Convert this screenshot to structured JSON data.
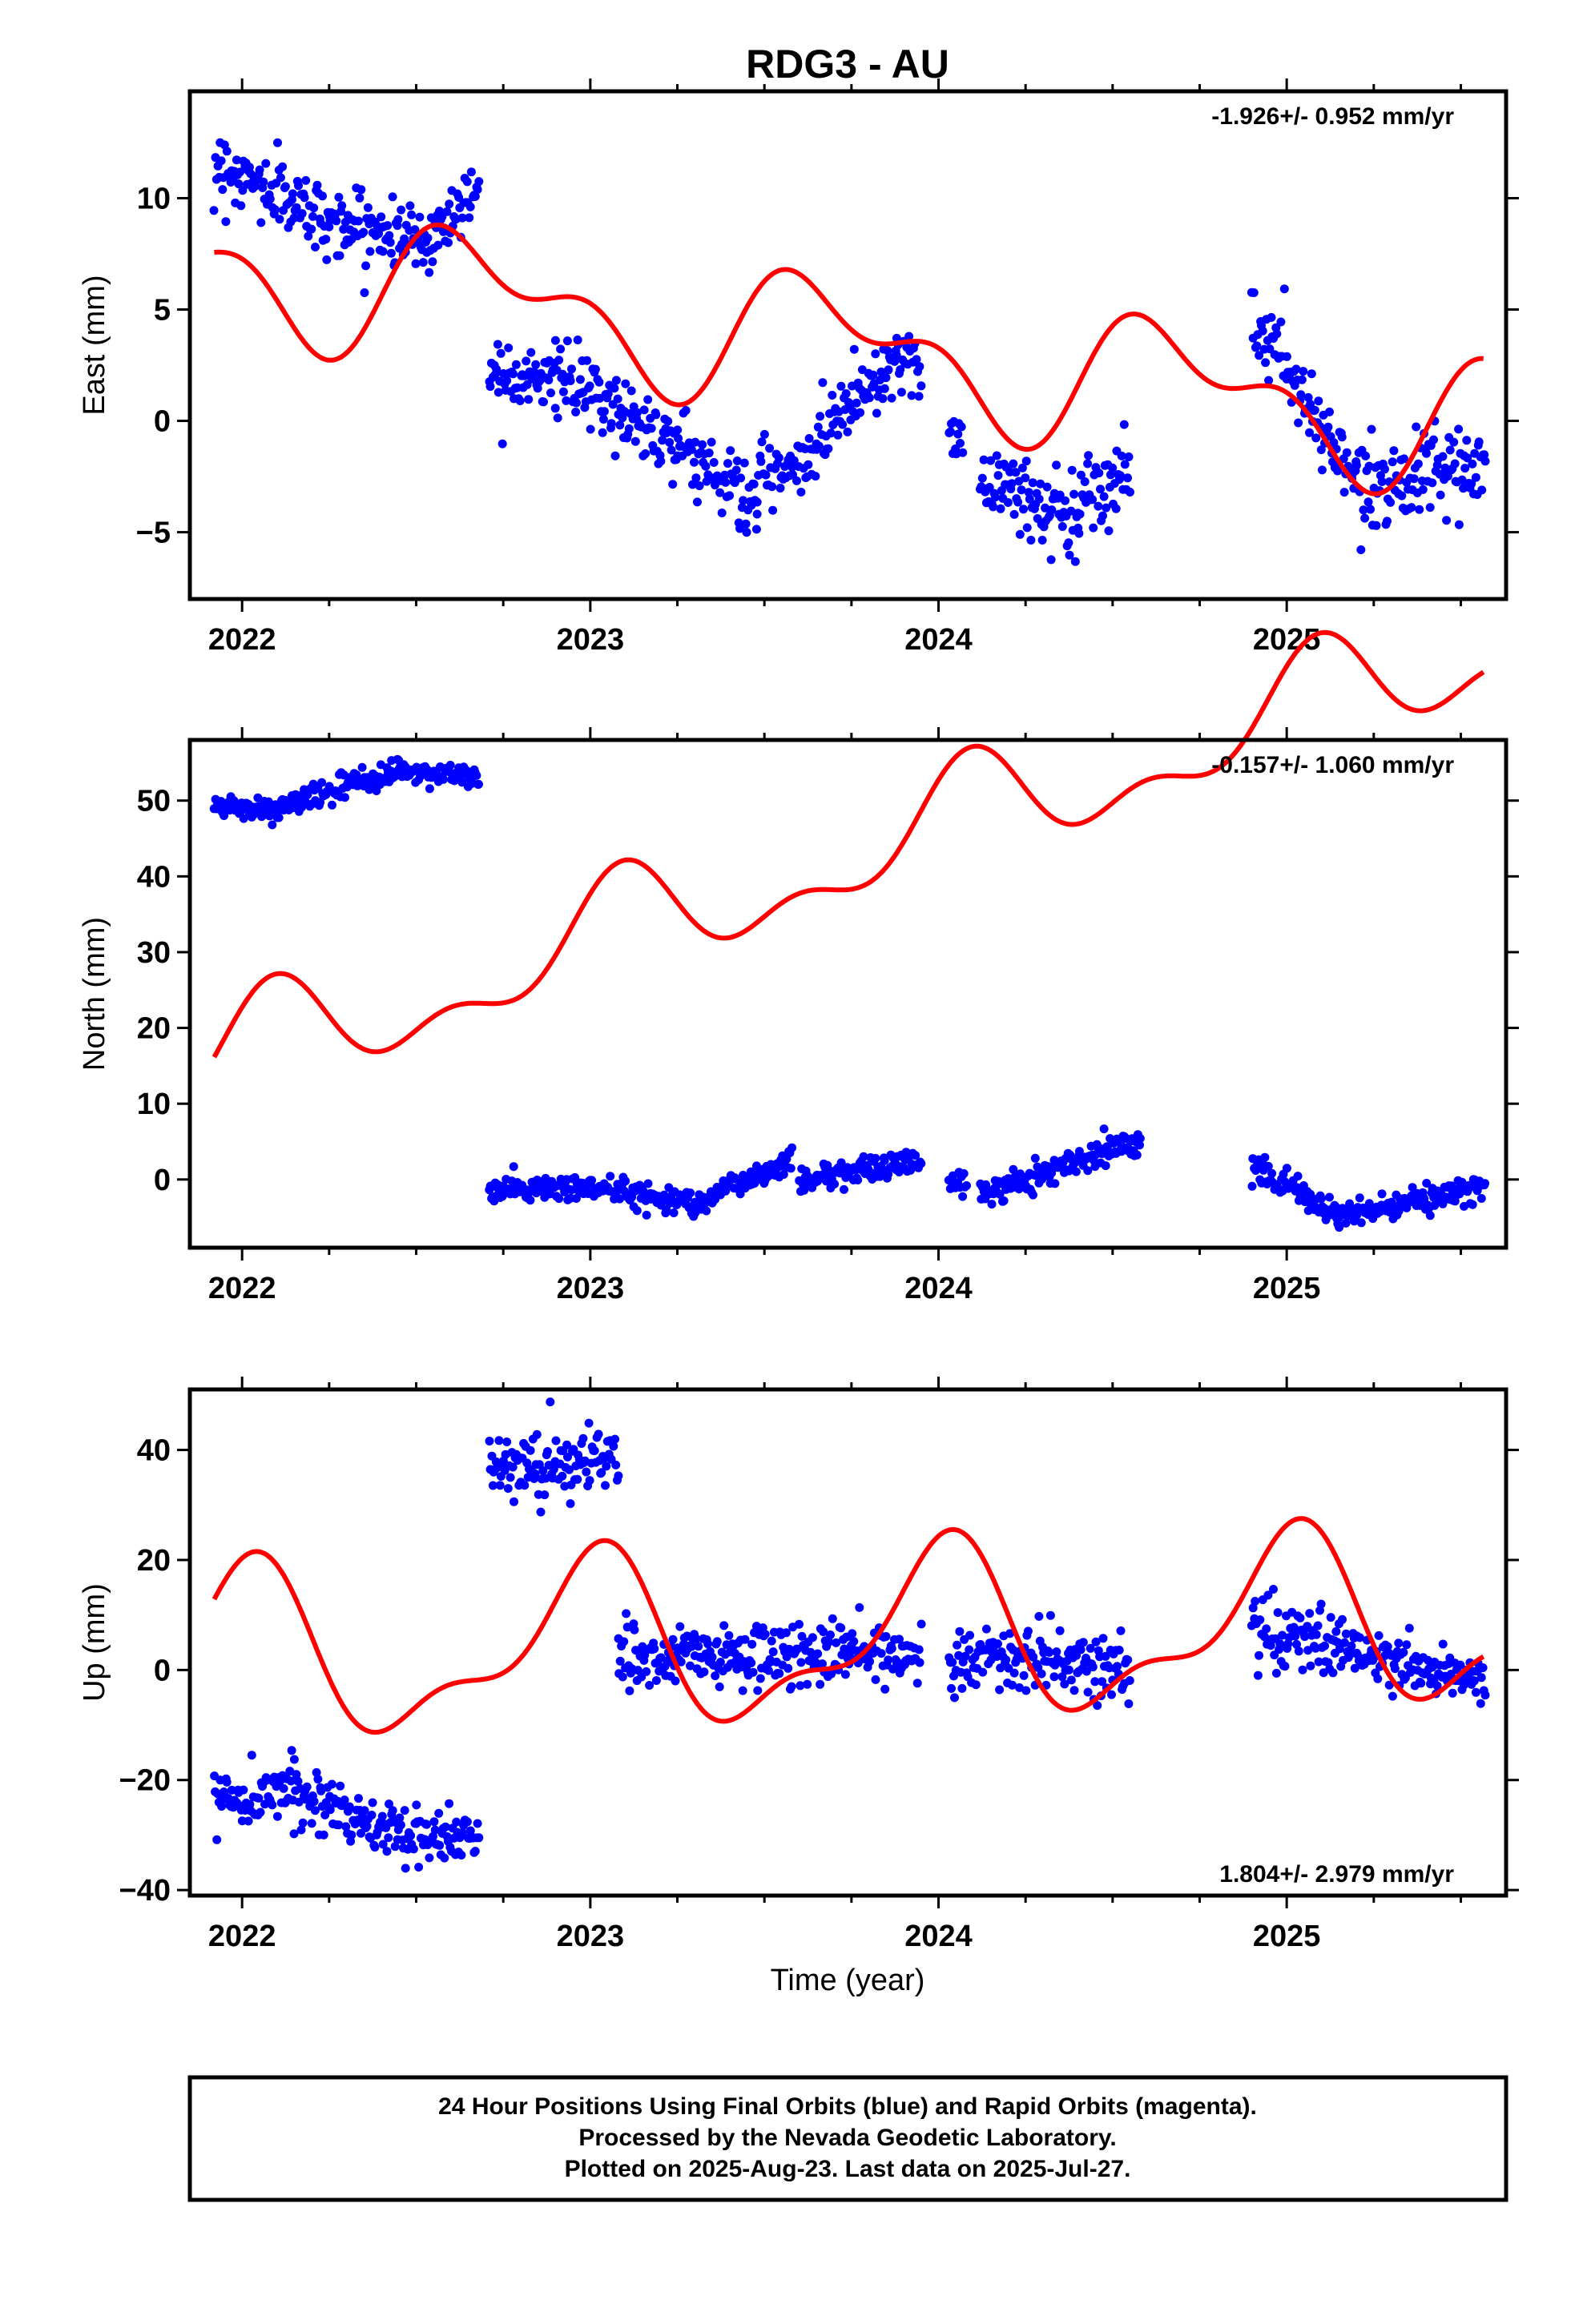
{
  "title": "RDG3 - AU",
  "xlabel": "Time (year)",
  "colors": {
    "final_orbits": "#0000ff",
    "model_fit": "#ff0000",
    "frame": "#000000"
  },
  "footer": {
    "line1": "24 Hour Positions Using Final Orbits (blue) and Rapid Orbits (magenta).",
    "line2": "Processed by the Nevada Geodetic Laboratory.",
    "line3": "Plotted on 2025-Aug-23. Last data on 2025-Jul-27."
  },
  "chart_data": [
    {
      "type": "scatter",
      "name": "east",
      "ylabel": "East (mm)",
      "rate": "-1.926+/- 0.952 mm/yr",
      "rate_position": "top-right",
      "xlim": [
        2021.85,
        2025.63
      ],
      "ylim": [
        -8,
        14.8
      ],
      "xticks": [
        2022,
        2023,
        2024,
        2025
      ],
      "yticks": [
        -5,
        0,
        5,
        10
      ],
      "ytick_labels": [
        "−5",
        "0",
        "5",
        "10"
      ],
      "data_segments": [
        {
          "x": [
            2021.92,
            2022.25
          ],
          "base": [
            11.6,
            9.0
          ],
          "amp": 1.3
        },
        {
          "x": [
            2022.25,
            2022.55
          ],
          "base": [
            9.0,
            8.0
          ],
          "amp": 1.2
        },
        {
          "x": [
            2022.55,
            2022.68
          ],
          "base": [
            8.5,
            10.5
          ],
          "amp": 1.2
        },
        {
          "x": [
            2022.71,
            2022.9
          ],
          "base": [
            2.3,
            2.0
          ],
          "amp": 1.3
        },
        {
          "x": [
            2022.9,
            2023.25
          ],
          "base": [
            2.0,
            -1.0
          ],
          "amp": 1.3
        },
        {
          "x": [
            2023.25,
            2023.48
          ],
          "base": [
            -1.0,
            -3.8
          ],
          "amp": 1.4
        },
        {
          "x": [
            2023.48,
            2023.65
          ],
          "base": [
            -2.5,
            -2.0
          ],
          "amp": 1.3
        },
        {
          "x": [
            2023.65,
            2023.88
          ],
          "base": [
            -0.5,
            2.8
          ],
          "amp": 1.3
        },
        {
          "x": [
            2023.88,
            2023.95
          ],
          "base": [
            3.0,
            2.0
          ],
          "amp": 1.0
        },
        {
          "x": [
            2024.03,
            2024.07
          ],
          "base": [
            -0.5,
            -0.5
          ],
          "amp": 1.0
        },
        {
          "x": [
            2024.12,
            2024.4
          ],
          "base": [
            -2.5,
            -4.5
          ],
          "amp": 1.8
        },
        {
          "x": [
            2024.4,
            2024.55
          ],
          "base": [
            -3.5,
            -2.0
          ],
          "amp": 1.6
        },
        {
          "x": [
            2024.9,
            2025.0
          ],
          "base": [
            4.0,
            3.0
          ],
          "amp": 1.5
        },
        {
          "x": [
            2025.0,
            2025.2
          ],
          "base": [
            2.0,
            -2.5
          ],
          "amp": 1.4
        },
        {
          "x": [
            2025.2,
            2025.57
          ],
          "base": [
            -2.8,
            -2.2
          ],
          "amp": 1.3
        }
      ],
      "model": {
        "trend": [
          7.0,
          -2.0
        ],
        "annual": [
          2.4,
          -2.0
        ],
        "semiannual": [
          1.5,
          0.3
        ]
      }
    },
    {
      "type": "scatter",
      "name": "north",
      "ylabel": "North (mm)",
      "rate": "-0.157+/- 1.060 mm/yr",
      "rate_position": "top-right",
      "xlim": [
        2021.85,
        2025.63
      ],
      "ylim": [
        -9,
        58
      ],
      "xticks": [
        2022,
        2023,
        2024,
        2025
      ],
      "yticks": [
        0,
        10,
        20,
        30,
        40,
        50
      ],
      "ytick_labels": [
        "0",
        "10",
        "20",
        "30",
        "40",
        "50"
      ],
      "data_segments": [
        {
          "x": [
            2021.92,
            2022.1
          ],
          "base": [
            49.5,
            48.5
          ],
          "amp": 1.4
        },
        {
          "x": [
            2022.1,
            2022.45
          ],
          "base": [
            49.0,
            54.0
          ],
          "amp": 1.4
        },
        {
          "x": [
            2022.45,
            2022.68
          ],
          "base": [
            54.0,
            53.0
          ],
          "amp": 1.3
        },
        {
          "x": [
            2022.71,
            2023.0
          ],
          "base": [
            -1.5,
            -1.0
          ],
          "amp": 1.5
        },
        {
          "x": [
            2023.0,
            2023.3
          ],
          "base": [
            -1.0,
            -3.0
          ],
          "amp": 1.4
        },
        {
          "x": [
            2023.3,
            2023.58
          ],
          "base": [
            -3.0,
            2.5
          ],
          "amp": 1.5
        },
        {
          "x": [
            2023.6,
            2023.95
          ],
          "base": [
            0.0,
            2.5
          ],
          "amp": 1.4
        },
        {
          "x": [
            2024.03,
            2024.08
          ],
          "base": [
            0.0,
            -1.0
          ],
          "amp": 1.2
        },
        {
          "x": [
            2024.12,
            2024.58
          ],
          "base": [
            -2.0,
            5.5
          ],
          "amp": 1.5
        },
        {
          "x": [
            2024.9,
            2025.15
          ],
          "base": [
            2.0,
            -5.0
          ],
          "amp": 1.5
        },
        {
          "x": [
            2025.15,
            2025.57
          ],
          "base": [
            -5.0,
            -1.0
          ],
          "amp": 1.4
        }
      ],
      "model": {
        "trend": [
          15.0,
          15.0
        ],
        "annual": [
          6.0,
          0.5
        ],
        "semiannual": [
          3.5,
          1.2
        ]
      }
    },
    {
      "type": "scatter",
      "name": "up",
      "ylabel": "Up (mm)",
      "rate": "1.804+/- 2.979 mm/yr",
      "rate_position": "bottom-right",
      "xlim": [
        2021.85,
        2025.63
      ],
      "ylim": [
        -41,
        51
      ],
      "xticks": [
        2022,
        2023,
        2024,
        2025
      ],
      "yticks": [
        -40,
        -20,
        0,
        20,
        40
      ],
      "ytick_labels": [
        "−40",
        "−20",
        "0",
        "20",
        "40"
      ],
      "data_segments": [
        {
          "x": [
            2021.92,
            2022.15
          ],
          "base": [
            -24.0,
            -21.0
          ],
          "amp": 4.5
        },
        {
          "x": [
            2022.15,
            2022.5
          ],
          "base": [
            -22.0,
            -31.0
          ],
          "amp": 4.5
        },
        {
          "x": [
            2022.5,
            2022.68
          ],
          "base": [
            -31.0,
            -29.0
          ],
          "amp": 4.5
        },
        {
          "x": [
            2022.71,
            2023.08
          ],
          "base": [
            37.0,
            38.0
          ],
          "amp": 5.0
        },
        {
          "x": [
            2023.08,
            2023.95
          ],
          "base": [
            2.0,
            3.0
          ],
          "amp": 5.0
        },
        {
          "x": [
            2024.03,
            2024.55
          ],
          "base": [
            3.0,
            0.0
          ],
          "amp": 5.0
        },
        {
          "x": [
            2024.9,
            2025.2
          ],
          "base": [
            8.0,
            3.0
          ],
          "amp": 5.0
        },
        {
          "x": [
            2025.2,
            2025.57
          ],
          "base": [
            3.0,
            -2.0
          ],
          "amp": 4.0
        }
      ],
      "model": {
        "trend": [
          2.0,
          2.0
        ],
        "annual": [
          14.0,
          0.0
        ],
        "semiannual": [
          6.0,
          0.8
        ]
      }
    }
  ]
}
